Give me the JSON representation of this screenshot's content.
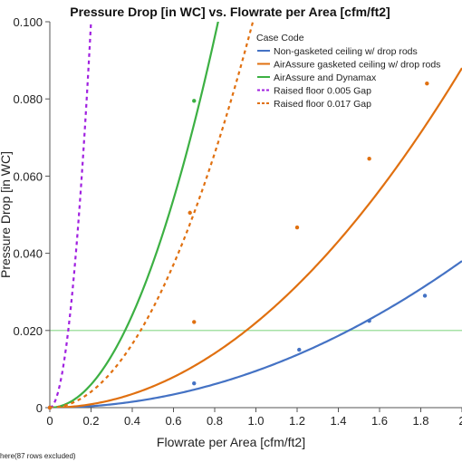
{
  "chart_data": {
    "type": "line",
    "title": "Pressure Drop [in WC] vs. Flowrate per Area [cfm/ft2]",
    "xlabel": "Flowrate per Area [cfm/ft2]",
    "ylabel": "Pressure Drop [in WC]",
    "xlim": [
      0,
      2.0
    ],
    "ylim": [
      0,
      0.1
    ],
    "x_ticks": [
      "0",
      "0.2",
      "0.4",
      "0.6",
      "0.8",
      "1.0",
      "1.2",
      "1.4",
      "1.6",
      "1.8",
      "2"
    ],
    "y_ticks": [
      "0",
      "0.020",
      "0.040",
      "0.060",
      "0.080",
      "0.100"
    ],
    "reference_line": {
      "y": 0.02,
      "color": "#88d888"
    },
    "legend_title": "Case Code",
    "legend_position": "top-right",
    "footnote": "here(87 rows excluded)",
    "series": [
      {
        "name": "Non-gasketed ceiling w/ drop rods",
        "color": "#4472c4",
        "style": "solid",
        "fit_coef": 0.0095,
        "points": [
          [
            0.0,
            0.0
          ],
          [
            0.7,
            0.0063
          ],
          [
            1.21,
            0.015
          ],
          [
            1.55,
            0.0225
          ],
          [
            1.82,
            0.029
          ]
        ]
      },
      {
        "name": "AirAssure gasketed ceiling w/ drop rods",
        "color": "#e07010",
        "style": "solid",
        "fit_coef": 0.022,
        "points": [
          [
            0.0,
            0.0
          ],
          [
            0.7,
            0.0222
          ],
          [
            1.2,
            0.0467
          ],
          [
            1.55,
            0.0645
          ],
          [
            1.83,
            0.084
          ]
        ]
      },
      {
        "name": "AirAssure and Dynamax",
        "color": "#3cb043",
        "style": "solid",
        "fit_coef": 0.15,
        "points": [
          [
            0.0,
            0.0
          ],
          [
            0.7,
            0.0795
          ]
        ]
      },
      {
        "name": "Raised floor 0.005 Gap",
        "color": "#a020e0",
        "style": "dashed",
        "fit_coef": 2.5,
        "points": [
          [
            0.0,
            0.0
          ]
        ]
      },
      {
        "name": "Raised floor 0.017 Gap",
        "color": "#e07010",
        "style": "dashed",
        "fit_coef": 0.103,
        "points": [
          [
            0.0,
            0.0
          ],
          [
            0.68,
            0.0505
          ]
        ]
      }
    ]
  }
}
